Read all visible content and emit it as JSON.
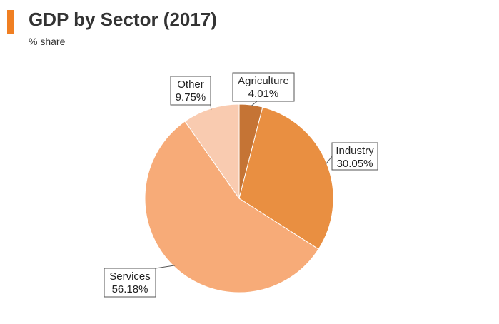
{
  "header": {
    "title": "GDP by Sector (2017)",
    "subtitle": "% share",
    "accent_color": "#f07f22"
  },
  "chart_data": {
    "type": "pie",
    "title": "GDP by Sector (2017)",
    "subtitle": "% share",
    "legend": "none",
    "slices": [
      {
        "label": "Agriculture",
        "value": 4.01,
        "display": "4.01%",
        "color": "#c57435"
      },
      {
        "label": "Industry",
        "value": 30.05,
        "display": "30.05%",
        "color": "#e98f41"
      },
      {
        "label": "Services",
        "value": 56.18,
        "display": "56.18%",
        "color": "#f7ab78"
      },
      {
        "label": "Other",
        "value": 9.75,
        "display": "9.75%",
        "color": "#f9cbb0"
      }
    ]
  }
}
